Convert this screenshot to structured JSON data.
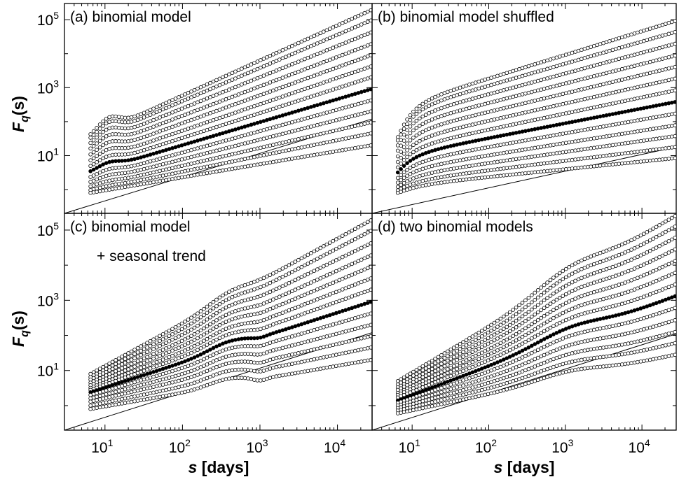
{
  "figure": {
    "xlabel_italic": "s",
    "xlabel_unit": "[days]",
    "ylabel_main": "F",
    "ylabel_sub": "q",
    "ylabel_arg": "(s)"
  },
  "chart_data": [
    {
      "type": "scatter",
      "title": "(a)  binomial model",
      "subtitle": "",
      "x_scale": "log",
      "y_scale": "log",
      "xlim": [
        3,
        28000
      ],
      "ylim": [
        0.2,
        300000
      ],
      "xticks": [
        "10^1",
        "10^2",
        "10^3",
        "10^4"
      ],
      "yticks": [
        "10^1",
        "10^3",
        "10^5"
      ],
      "highlight_series": "q = 2 (filled markers)",
      "series_count": 13,
      "series_right_end_y": [
        190000,
        95000,
        42000,
        19000,
        9000,
        4200,
        2000,
        900,
        420,
        200,
        95,
        45,
        20
      ],
      "series_left_start_y": [
        35,
        28,
        20,
        14,
        9.5,
        6.5,
        4.5,
        3.2,
        2.2,
        1.6,
        1.2,
        0.95,
        0.8
      ],
      "reference_line": {
        "x": [
          3,
          28000
        ],
        "y": [
          0.2,
          120
        ]
      }
    },
    {
      "type": "scatter",
      "title": "(b)  binomial model shuffled",
      "subtitle": "",
      "x_scale": "log",
      "y_scale": "log",
      "xlim": [
        3,
        28000
      ],
      "ylim": [
        0.2,
        300000
      ],
      "xticks": [
        "10^1",
        "10^2",
        "10^3",
        "10^4"
      ],
      "yticks": [
        "10^1",
        "10^3",
        "10^5"
      ],
      "highlight_series": "q = 2 (filled markers)",
      "series_count": 13,
      "series_right_end_y": [
        40000,
        20000,
        9500,
        4500,
        2200,
        1050,
        500,
        240,
        115,
        55,
        28,
        14,
        7
      ],
      "series_left_start_y": [
        35,
        28,
        20,
        14,
        9.5,
        6.5,
        4.5,
        3.2,
        2.2,
        1.6,
        1.2,
        0.95,
        0.8
      ],
      "reference_line": {
        "x": [
          3,
          28000
        ],
        "y": [
          0.2,
          18
        ]
      }
    },
    {
      "type": "scatter",
      "title": "(c)  binomial model",
      "subtitle": "+ seasonal trend",
      "x_scale": "log",
      "y_scale": "log",
      "xlim": [
        3,
        28000
      ],
      "ylim": [
        0.2,
        300000
      ],
      "xticks": [
        "10^1",
        "10^2",
        "10^3",
        "10^4"
      ],
      "yticks": [
        "10^1",
        "10^3",
        "10^5"
      ],
      "highlight_series": "q = 2 (filled markers)",
      "series_count": 13,
      "series_right_end_y": [
        190000,
        95000,
        42000,
        19000,
        9000,
        4200,
        2000,
        900,
        420,
        200,
        95,
        45,
        20
      ],
      "series_left_start_y": [
        8,
        6.5,
        5.5,
        4.5,
        3.8,
        3.2,
        2.8,
        2.4,
        2.0,
        1.6,
        1.3,
        1.0,
        0.8
      ],
      "reference_line": {
        "x": [
          3,
          28000
        ],
        "y": [
          0.2,
          120
        ]
      }
    },
    {
      "type": "scatter",
      "title": "(d)  two binomial models",
      "subtitle": "",
      "x_scale": "log",
      "y_scale": "log",
      "xlim": [
        3,
        28000
      ],
      "ylim": [
        0.2,
        300000
      ],
      "xticks": [
        "10^1",
        "10^2",
        "10^3",
        "10^4"
      ],
      "yticks": [
        "10^1",
        "10^3",
        "10^5"
      ],
      "highlight_series": "q = 2 (filled markers)",
      "series_count": 13,
      "series_right_end_y": [
        250000,
        125000,
        60000,
        28000,
        13000,
        6000,
        2800,
        1300,
        600,
        270,
        125,
        60,
        28
      ],
      "series_left_start_y": [
        5,
        4,
        3.3,
        2.8,
        2.3,
        2.0,
        1.7,
        1.4,
        1.2,
        1.0,
        0.85,
        0.72,
        0.6
      ],
      "reference_line": {
        "x": [
          3,
          28000
        ],
        "y": [
          0.2,
          110
        ]
      }
    }
  ]
}
